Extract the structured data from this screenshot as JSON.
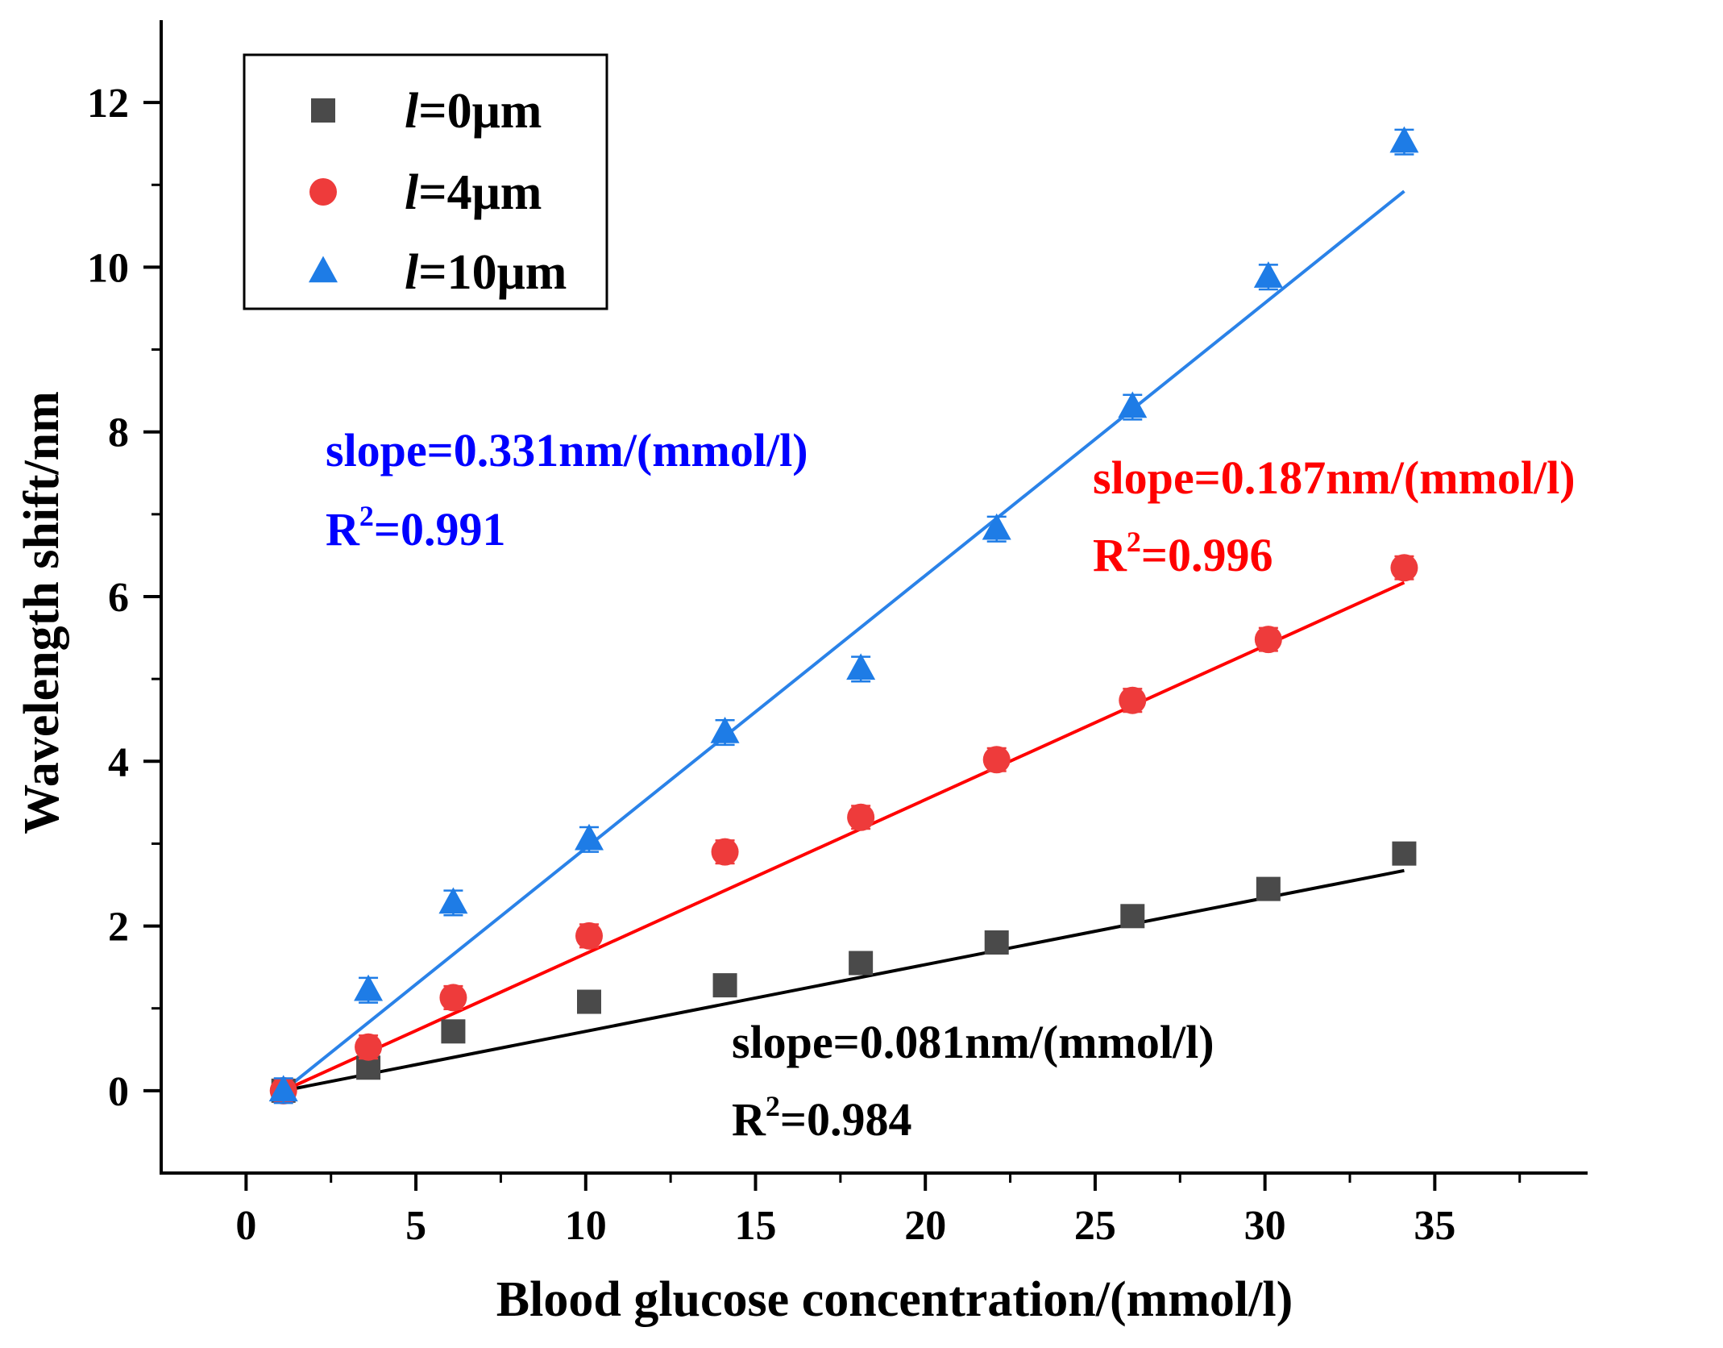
{
  "chart_data": {
    "type": "scatter",
    "title": "",
    "xlabel": "Blood glucose concentration/(mmol/l)",
    "ylabel": "Wavelength shift/nm",
    "xlim": [
      -2.5,
      39.5
    ],
    "ylim": [
      -1,
      13
    ],
    "xticks": [
      0,
      5,
      10,
      15,
      20,
      25,
      30,
      35
    ],
    "xtick_labels": [
      "0",
      "5",
      "10",
      "15",
      "20",
      "25",
      "30",
      "35"
    ],
    "yticks": [
      0,
      2,
      4,
      6,
      8,
      10,
      12
    ],
    "ytick_labels": [
      "0",
      "2",
      "4",
      "6",
      "8",
      "10",
      "12"
    ],
    "legend_position": "top-left",
    "x": [
      1.1,
      3.6,
      6.1,
      10.1,
      14.1,
      18.1,
      22.1,
      26.1,
      30.1,
      34.1
    ],
    "series": [
      {
        "name": "l=0μm",
        "legend_italic": "l",
        "legend_rest": "=0μm",
        "marker": "square",
        "color": "#4a4a4a",
        "line_color": "#000000",
        "values": [
          0.0,
          0.28,
          0.72,
          1.08,
          1.28,
          1.55,
          1.8,
          2.12,
          2.45,
          2.88
        ],
        "error": 0.12,
        "fit": {
          "slope": 0.081,
          "x0": 1.1
        },
        "annotation": {
          "slope_text": "slope=0.081nm/(mmol/l)",
          "r2_prefix": "R",
          "r2_sup": "2",
          "r2_value": "=0.984"
        }
      },
      {
        "name": "l=4μm",
        "legend_italic": "l",
        "legend_rest": "=4μm",
        "marker": "circle",
        "color": "#ee3b3b",
        "line_color": "#ff0000",
        "values": [
          0.0,
          0.53,
          1.13,
          1.88,
          2.9,
          3.32,
          4.02,
          4.74,
          5.48,
          6.35
        ],
        "error": 0.14,
        "fit": {
          "slope": 0.187,
          "x0": 1.1
        },
        "annotation": {
          "slope_text": "slope=0.187nm/(mmol/l)",
          "r2_prefix": "R",
          "r2_sup": "2",
          "r2_value": "=0.996"
        }
      },
      {
        "name": "l=10μm",
        "legend_italic": "l",
        "legend_rest": "=10μm",
        "marker": "triangle",
        "color": "#1e7ce6",
        "line_color": "#2a82e8",
        "values": [
          0.0,
          1.22,
          2.28,
          3.05,
          4.35,
          5.12,
          6.82,
          8.3,
          9.88,
          11.52
        ],
        "error": 0.15,
        "fit": {
          "slope": 0.331,
          "x0": 1.1
        },
        "annotation": {
          "slope_text": "slope=0.331nm/(mmol/l)",
          "r2_prefix": "R",
          "r2_sup": "2",
          "r2_value": "=0.991"
        }
      }
    ],
    "annotation_colors": [
      "#000000",
      "#ff0000",
      "#0000ff"
    ]
  }
}
